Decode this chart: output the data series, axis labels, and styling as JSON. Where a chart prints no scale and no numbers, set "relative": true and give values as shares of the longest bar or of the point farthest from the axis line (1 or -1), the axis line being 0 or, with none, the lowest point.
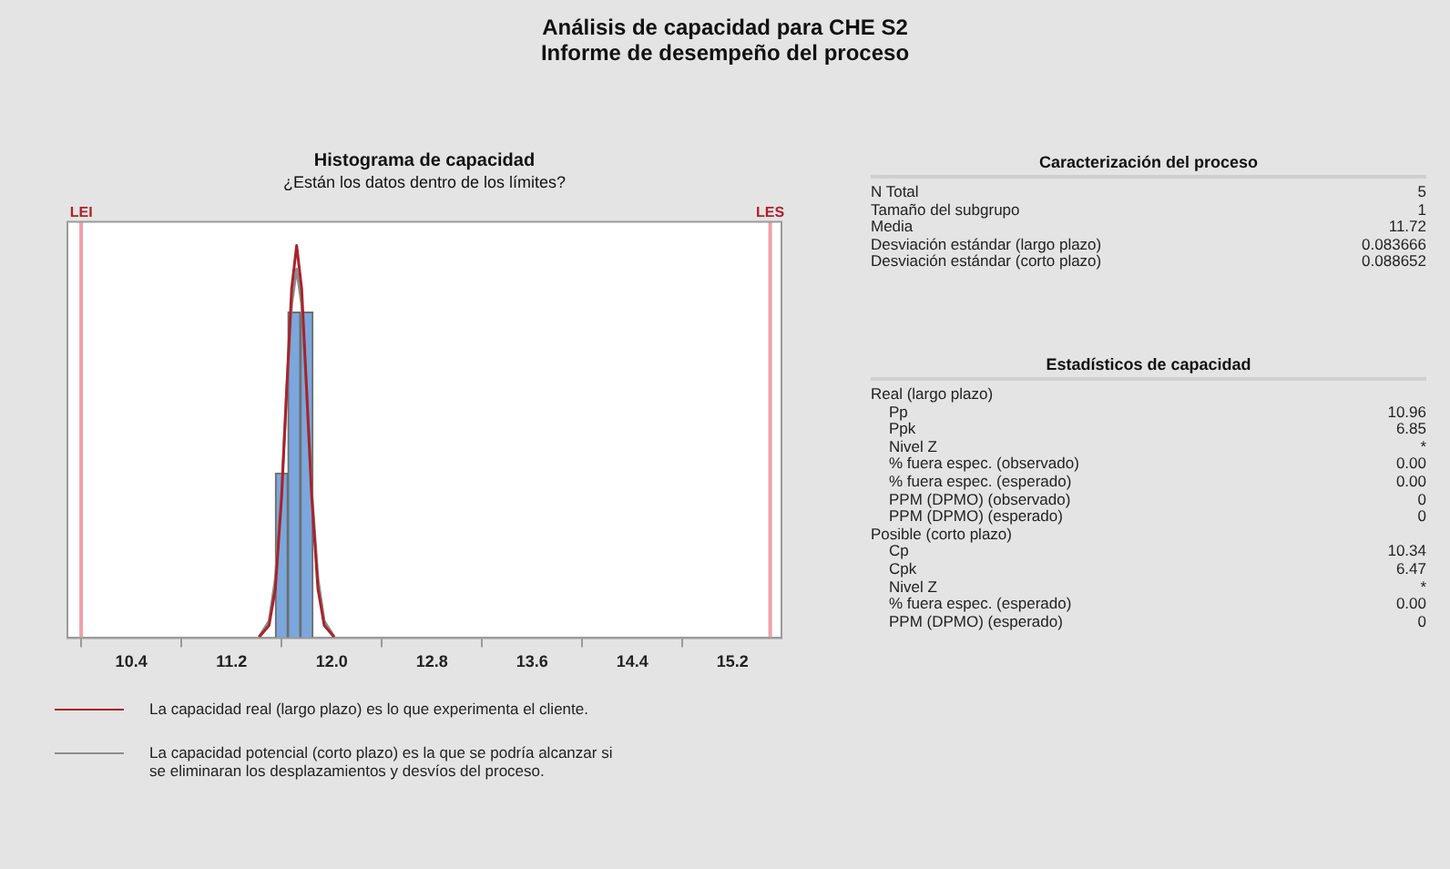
{
  "chart_data": [
    {
      "type": "other",
      "title": "Análisis de capacidad para CHE S2",
      "subtitle": "Informe de desempeño del proceso"
    },
    {
      "type": "histogram",
      "title": "Histograma de capacidad",
      "subtitle": "¿Están los datos dentro de los límites?",
      "bins": [
        11.55,
        11.65,
        11.75,
        11.85
      ],
      "values": [
        0.42,
        0.83,
        0.83
      ],
      "color": "#7ba7dd",
      "relative": true,
      "series": [
        {
          "type": "line",
          "name": "La capacidad real (largo plazo) es lo que experimenta el cliente.",
          "color": "#a8232a",
          "x": [
            11.42,
            11.5,
            11.55,
            11.6,
            11.64,
            11.68,
            11.72,
            11.76,
            11.8,
            11.84,
            11.89,
            11.94,
            12.02
          ],
          "values": [
            0.002,
            0.032,
            0.125,
            0.36,
            0.63,
            0.89,
            1,
            0.89,
            0.63,
            0.36,
            0.125,
            0.032,
            0.002
          ]
        },
        {
          "type": "line",
          "name": "La capacidad potencial (corto plazo) es la que se podría alcanzar si se eliminaran los desplazamientos y desvíos del proceso.",
          "color": "#8c8c8c",
          "x": [
            11.42,
            11.5,
            11.55,
            11.6,
            11.64,
            11.68,
            11.72,
            11.76,
            11.8,
            11.84,
            11.89,
            11.94,
            12.02
          ],
          "values": [
            0.003,
            0.043,
            0.15,
            0.375,
            0.625,
            0.85,
            0.94,
            0.85,
            0.625,
            0.375,
            0.15,
            0.043,
            0.003
          ]
        }
      ],
      "xlim": [
        9.89,
        15.59
      ],
      "xticks": [
        10.4,
        11.2,
        {
          "value": 12,
          "label": "12.0"
        },
        12.8,
        13.6,
        14.4,
        15.2
      ],
      "ref_lines": [
        {
          "axis": "x",
          "value": 10.0,
          "label": "LEI",
          "color": "#f0a0a8"
        },
        {
          "axis": "x",
          "value": 15.5,
          "label": "LES",
          "color": "#f0a0a8"
        }
      ],
      "grid": false,
      "legend": "bottom",
      "marker": "none",
      "line_style": "solid"
    },
    {
      "type": "other",
      "title": "Caracterización del proceso",
      "categories": [
        "N Total",
        "Tamaño del subgrupo",
        "Media",
        "Desviación estándar (largo plazo)",
        "Desviación estándar (corto plazo)"
      ],
      "value_labels": [
        "5",
        "1",
        "11.72",
        "0.083666",
        "0.088652"
      ]
    },
    {
      "type": "other",
      "title": "Estadísticos de capacidad",
      "categories": [
        "Real (largo plazo)",
        "Pp",
        "Ppk",
        "Nivel Z",
        "% fuera espec. (observado)",
        "% fuera espec. (esperado)",
        "PPM (DPMO) (observado)",
        "PPM (DPMO) (esperado)",
        "Posible (corto plazo)",
        "Cp",
        "Cpk",
        "Nivel Z",
        "% fuera espec. (esperado)",
        "PPM (DPMO) (esperado)"
      ],
      "value_labels": [
        null,
        "10.96",
        "6.85",
        "*",
        "0.00",
        "0.00",
        "0",
        "0",
        null,
        "10.34",
        "6.47",
        "*",
        "0.00",
        "0"
      ]
    }
  ]
}
